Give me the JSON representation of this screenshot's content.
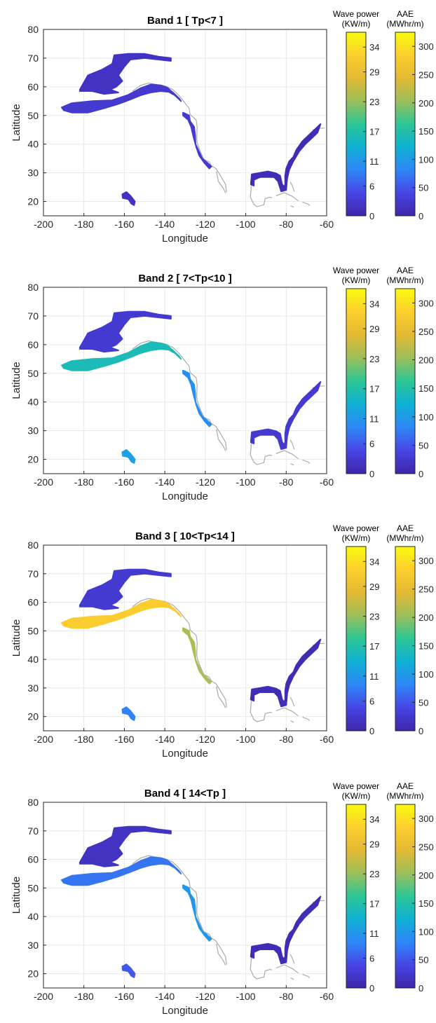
{
  "chart_data": [
    {
      "type": "heatmap",
      "title": "Band 1 [ Tp<7 ]",
      "xlabel": "Longitude",
      "ylabel": "Latitude",
      "xlim": [
        -200,
        -60
      ],
      "ylim": [
        15,
        80
      ],
      "xticks": [
        "-200",
        "-180",
        "-160",
        "-140",
        "-120",
        "-100",
        "-80",
        "-60"
      ],
      "yticks": [
        "20",
        "30",
        "40",
        "50",
        "60",
        "70",
        "80"
      ],
      "grid": true,
      "colorbars": [
        {
          "title_line1": "Wave power",
          "title_line2": "(KW/m)",
          "ticks": [
            "34",
            "29",
            "23",
            "17",
            "11",
            "6",
            "0"
          ],
          "max": 37
        },
        {
          "title_line1": "AAE",
          "title_line2": "(MWhr/m)",
          "ticks": [
            "300",
            "250",
            "200",
            "150",
            "100",
            "50",
            "0"
          ],
          "max": 325
        }
      ],
      "regions": [
        {
          "name": "Bering Sea / Alaska",
          "wave_power_kw_m": 2
        },
        {
          "name": "Aleutian / Gulf of Alaska",
          "wave_power_kw_m": 3
        },
        {
          "name": "US West Coast",
          "wave_power_kw_m": 3
        },
        {
          "name": "Gulf of Mexico / US East Coast",
          "wave_power_kw_m": 1
        },
        {
          "name": "Hawaii",
          "wave_power_kw_m": 2
        }
      ]
    },
    {
      "type": "heatmap",
      "title": "Band 2 [ 7<Tp<10 ]",
      "xlabel": "Longitude",
      "ylabel": "Latitude",
      "xlim": [
        -200,
        -60
      ],
      "ylim": [
        15,
        80
      ],
      "xticks": [
        "-200",
        "-180",
        "-160",
        "-140",
        "-120",
        "-100",
        "-80",
        "-60"
      ],
      "yticks": [
        "20",
        "30",
        "40",
        "50",
        "60",
        "70",
        "80"
      ],
      "grid": true,
      "colorbars": [
        {
          "title_line1": "Wave power",
          "title_line2": "(KW/m)",
          "ticks": [
            "34",
            "29",
            "23",
            "17",
            "11",
            "6",
            "0"
          ],
          "max": 37
        },
        {
          "title_line1": "AAE",
          "title_line2": "(MWhr/m)",
          "ticks": [
            "300",
            "250",
            "200",
            "150",
            "100",
            "50",
            "0"
          ],
          "max": 325
        }
      ],
      "regions": [
        {
          "name": "Bering Sea / Alaska",
          "wave_power_kw_m": 3
        },
        {
          "name": "Aleutian / Gulf of Alaska",
          "wave_power_kw_m": 16
        },
        {
          "name": "US West Coast",
          "wave_power_kw_m": 10
        },
        {
          "name": "Gulf of Mexico / US East Coast",
          "wave_power_kw_m": 3
        },
        {
          "name": "Hawaii",
          "wave_power_kw_m": 12
        }
      ]
    },
    {
      "type": "heatmap",
      "title": "Band 3 [ 10<Tp<14 ]",
      "xlabel": "Longitude",
      "ylabel": "Latitude",
      "xlim": [
        -200,
        -60
      ],
      "ylim": [
        15,
        80
      ],
      "xticks": [
        "-200",
        "-180",
        "-160",
        "-140",
        "-120",
        "-100",
        "-80",
        "-60"
      ],
      "yticks": [
        "20",
        "30",
        "40",
        "50",
        "60",
        "70",
        "80"
      ],
      "grid": true,
      "colorbars": [
        {
          "title_line1": "Wave power",
          "title_line2": "(KW/m)",
          "ticks": [
            "34",
            "29",
            "23",
            "17",
            "11",
            "6",
            "0"
          ],
          "max": 37
        },
        {
          "title_line1": "AAE",
          "title_line2": "(MWhr/m)",
          "ticks": [
            "300",
            "250",
            "200",
            "150",
            "100",
            "50",
            "0"
          ],
          "max": 325
        }
      ],
      "regions": [
        {
          "name": "Bering Sea / Alaska",
          "wave_power_kw_m": 3
        },
        {
          "name": "Aleutian / Gulf of Alaska",
          "wave_power_kw_m": 32
        },
        {
          "name": "US West Coast",
          "wave_power_kw_m": 24
        },
        {
          "name": "Gulf of Mexico / US East Coast",
          "wave_power_kw_m": 1
        },
        {
          "name": "Hawaii",
          "wave_power_kw_m": 9
        }
      ]
    },
    {
      "type": "heatmap",
      "title": "Band 4 [ 14<Tp ]",
      "xlabel": "Longitude",
      "ylabel": "Latitude",
      "xlim": [
        -200,
        -60
      ],
      "ylim": [
        15,
        80
      ],
      "xticks": [
        "-200",
        "-180",
        "-160",
        "-140",
        "-120",
        "-100",
        "-80",
        "-60"
      ],
      "yticks": [
        "20",
        "30",
        "40",
        "50",
        "60",
        "70",
        "80"
      ],
      "grid": true,
      "colorbars": [
        {
          "title_line1": "Wave power",
          "title_line2": "(KW/m)",
          "ticks": [
            "34",
            "29",
            "23",
            "17",
            "11",
            "6",
            "0"
          ],
          "max": 37
        },
        {
          "title_line1": "AAE",
          "title_line2": "(MWhr/m)",
          "ticks": [
            "300",
            "250",
            "200",
            "150",
            "100",
            "50",
            "0"
          ],
          "max": 325
        }
      ],
      "regions": [
        {
          "name": "Bering Sea / Alaska",
          "wave_power_kw_m": 2
        },
        {
          "name": "Aleutian / Gulf of Alaska",
          "wave_power_kw_m": 8
        },
        {
          "name": "US West Coast",
          "wave_power_kw_m": 11
        },
        {
          "name": "Gulf of Mexico / US East Coast",
          "wave_power_kw_m": 1
        },
        {
          "name": "Hawaii",
          "wave_power_kw_m": 6
        }
      ]
    }
  ],
  "colormap": [
    "#3e26a8",
    "#4745e6",
    "#2e87f7",
    "#0fb1d4",
    "#2dc695",
    "#9bbf5b",
    "#e3b934",
    "#fcce2e",
    "#f9fb0e"
  ],
  "axis_color": "#262626",
  "grid_color": "#e8e8e8",
  "land_color": "#aaaaaa"
}
